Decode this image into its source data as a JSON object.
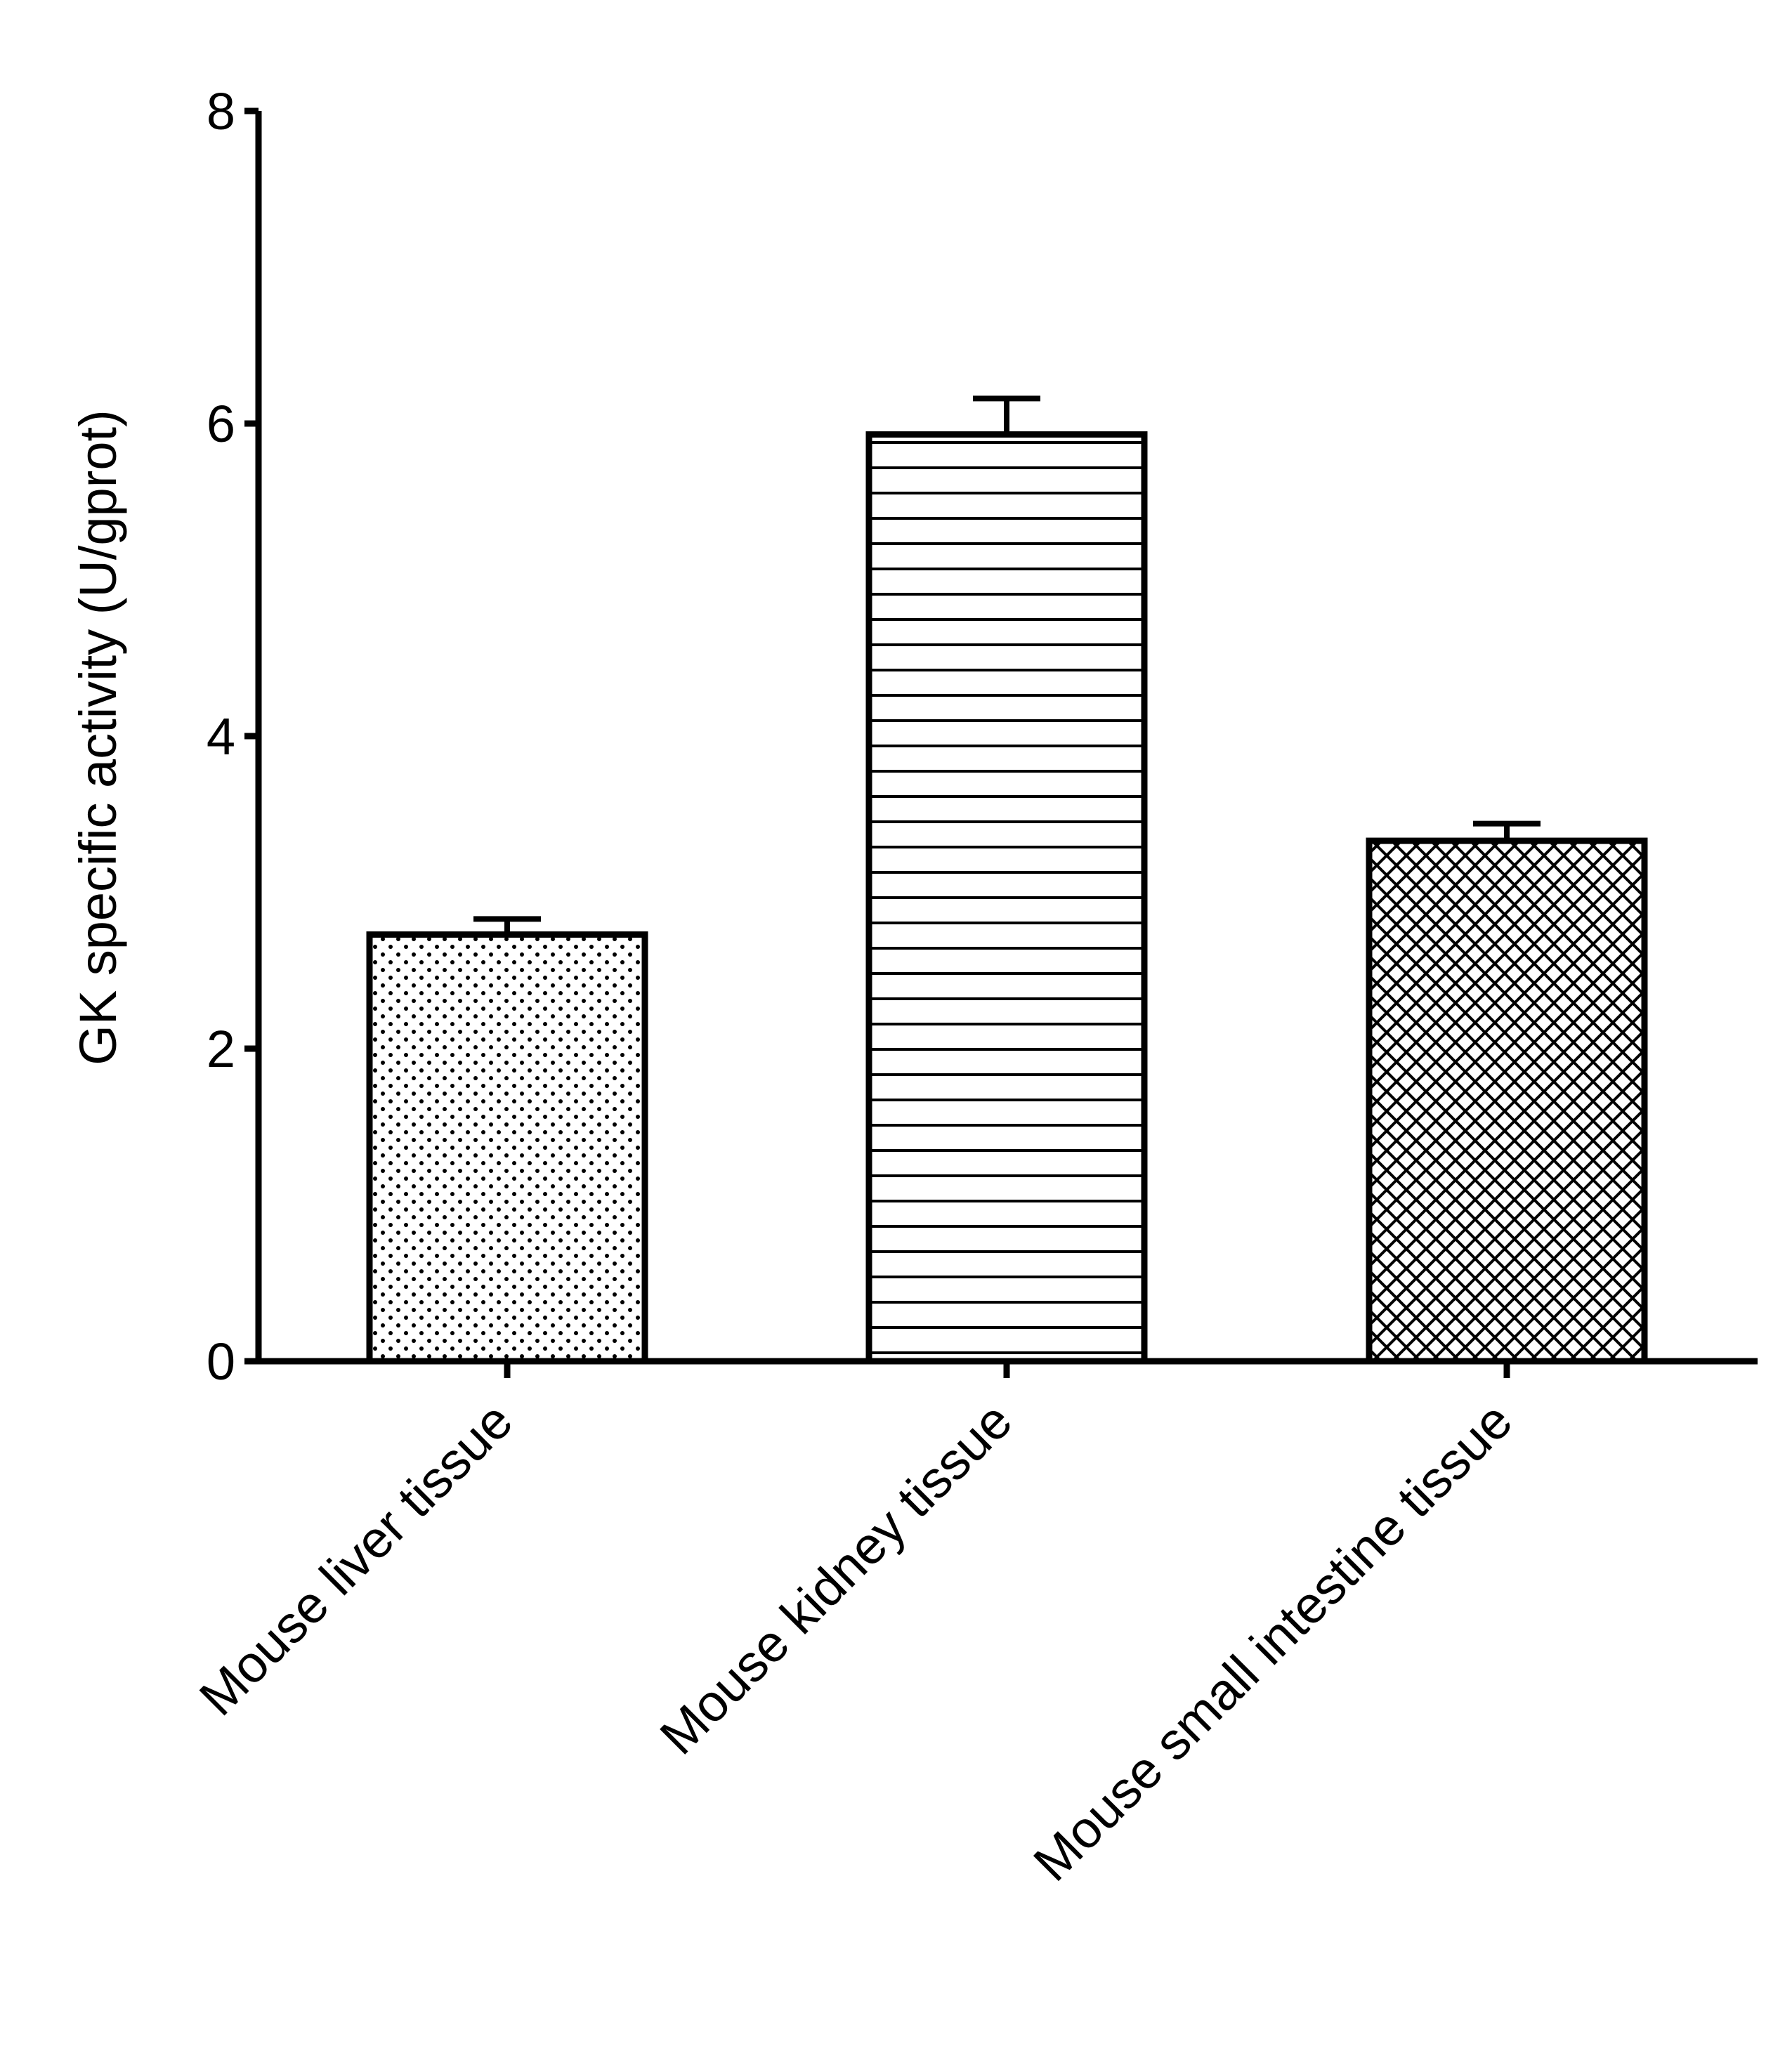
{
  "chart_data": {
    "type": "bar",
    "title": "",
    "xlabel": "",
    "ylabel": "GK specific activity (U/gprot)",
    "categories": [
      "Mouse liver tissue",
      "Mouse kidney tissue",
      "Mouse small intestine tissue"
    ],
    "values": [
      2.73,
      5.93,
      3.33
    ],
    "error_bars": [
      0.1,
      0.23,
      0.11
    ],
    "fill_patterns": [
      "dots",
      "horizontal-lines",
      "crosshatch"
    ],
    "ylim": [
      0,
      8
    ],
    "y_ticks": [
      "0",
      "2",
      "4",
      "6",
      "8"
    ],
    "grid": false,
    "legend": "none",
    "colors": {
      "stroke": "#000000",
      "fill": "#ffffff"
    }
  }
}
